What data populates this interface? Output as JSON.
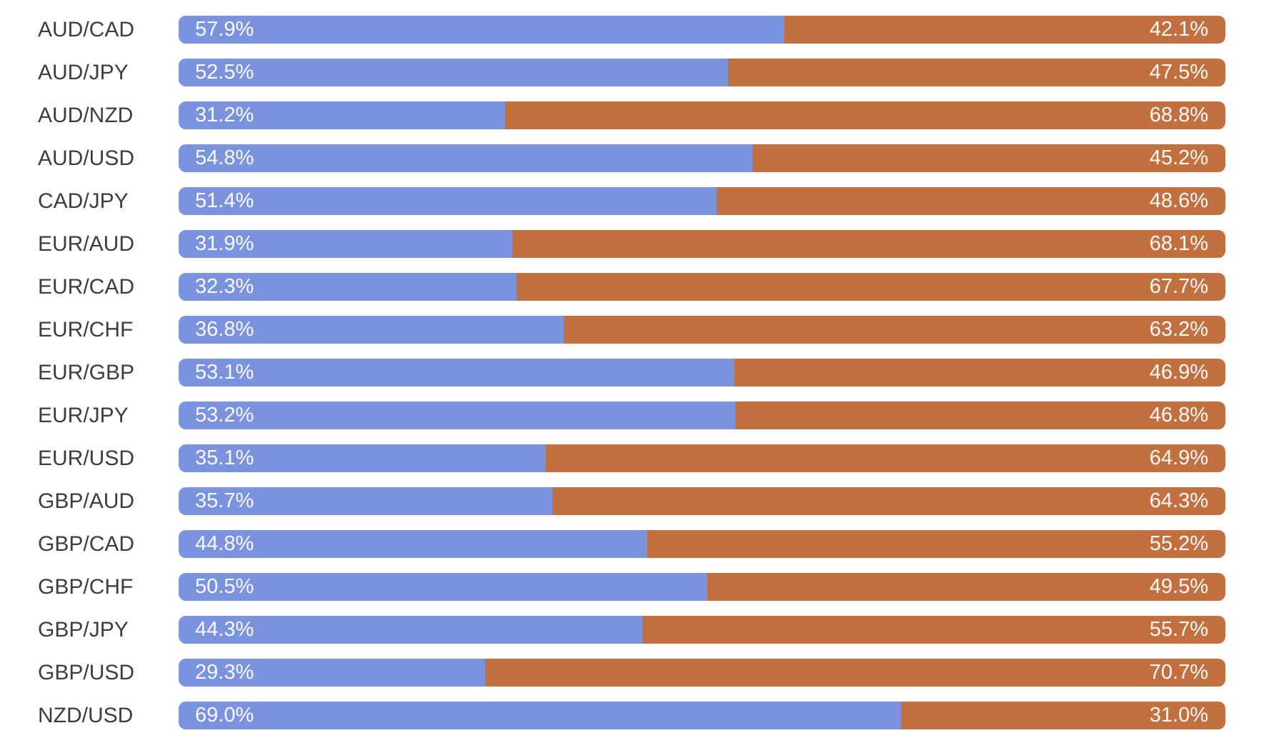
{
  "page": {
    "background": "#ffffff",
    "label_color": "#3d3d3d",
    "bar_text_color": "#fbf9f6"
  },
  "chart_data": {
    "type": "bar",
    "orientation": "horizontal-stacked",
    "title": "",
    "xlabel": "",
    "ylabel": "",
    "xlim": [
      0,
      100
    ],
    "value_format": "percent",
    "grid": "off",
    "legend": "none",
    "categories": [
      "AUD/CAD",
      "AUD/JPY",
      "AUD/NZD",
      "AUD/USD",
      "CAD/JPY",
      "EUR/AUD",
      "EUR/CAD",
      "EUR/CHF",
      "EUR/GBP",
      "EUR/JPY",
      "EUR/USD",
      "GBP/AUD",
      "GBP/CAD",
      "GBP/CHF",
      "GBP/JPY",
      "GBP/USD",
      "NZD/USD"
    ],
    "series": [
      {
        "name": "blue-left-segment",
        "color": "#7b93de",
        "values": [
          57.9,
          52.5,
          31.2,
          54.8,
          51.4,
          31.9,
          32.3,
          36.8,
          53.1,
          53.2,
          35.1,
          35.7,
          44.8,
          50.5,
          44.3,
          29.3,
          69.0
        ]
      },
      {
        "name": "orange-right-segment",
        "color": "#c2703f",
        "values": [
          42.1,
          47.5,
          68.8,
          45.2,
          48.6,
          68.1,
          67.7,
          63.2,
          46.9,
          46.8,
          64.9,
          64.3,
          55.2,
          49.5,
          55.7,
          70.7,
          31.0
        ]
      }
    ]
  },
  "rows": [
    {
      "pair": "AUD/CAD",
      "left_label": "57.9%",
      "right_label": "42.1%"
    },
    {
      "pair": "AUD/JPY",
      "left_label": "52.5%",
      "right_label": "47.5%"
    },
    {
      "pair": "AUD/NZD",
      "left_label": "31.2%",
      "right_label": "68.8%"
    },
    {
      "pair": "AUD/USD",
      "left_label": "54.8%",
      "right_label": "45.2%"
    },
    {
      "pair": "CAD/JPY",
      "left_label": "51.4%",
      "right_label": "48.6%"
    },
    {
      "pair": "EUR/AUD",
      "left_label": "31.9%",
      "right_label": "68.1%"
    },
    {
      "pair": "EUR/CAD",
      "left_label": "32.3%",
      "right_label": "67.7%"
    },
    {
      "pair": "EUR/CHF",
      "left_label": "36.8%",
      "right_label": "63.2%"
    },
    {
      "pair": "EUR/GBP",
      "left_label": "53.1%",
      "right_label": "46.9%"
    },
    {
      "pair": "EUR/JPY",
      "left_label": "53.2%",
      "right_label": "46.8%"
    },
    {
      "pair": "EUR/USD",
      "left_label": "35.1%",
      "right_label": "64.9%"
    },
    {
      "pair": "GBP/AUD",
      "left_label": "35.7%",
      "right_label": "64.3%"
    },
    {
      "pair": "GBP/CAD",
      "left_label": "44.8%",
      "right_label": "55.2%"
    },
    {
      "pair": "GBP/CHF",
      "left_label": "50.5%",
      "right_label": "49.5%"
    },
    {
      "pair": "GBP/JPY",
      "left_label": "44.3%",
      "right_label": "55.7%"
    },
    {
      "pair": "GBP/USD",
      "left_label": "29.3%",
      "right_label": "70.7%"
    },
    {
      "pair": "NZD/USD",
      "left_label": "69.0%",
      "right_label": "31.0%"
    }
  ]
}
